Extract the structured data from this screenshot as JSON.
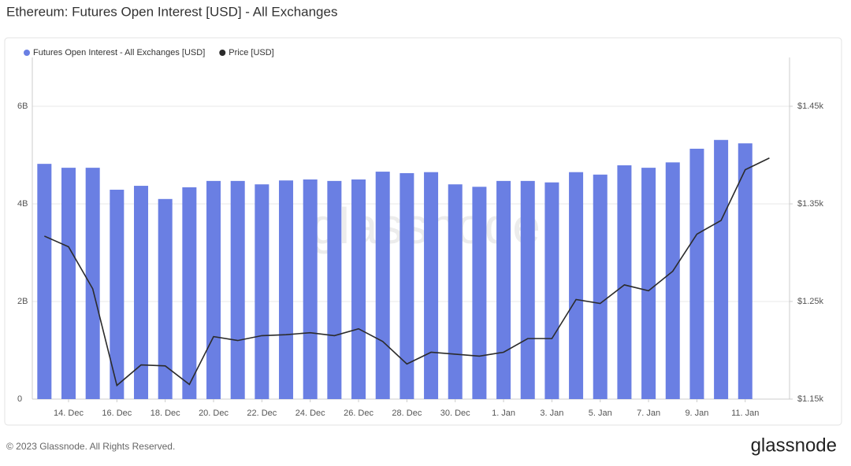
{
  "chart_data": {
    "type": "bar-line",
    "title": "Ethereum: Futures Open Interest [USD] - All Exchanges",
    "watermark": "glassnode",
    "footer": "© 2023 Glassnode. All Rights Reserved.",
    "logo": "glassnode",
    "categories": [
      null,
      "14. Dec",
      null,
      "16. Dec",
      null,
      "18. Dec",
      null,
      "20. Dec",
      null,
      "22. Dec",
      null,
      "24. Dec",
      null,
      "26. Dec",
      null,
      "28. Dec",
      null,
      "30. Dec",
      null,
      "1. Jan",
      null,
      "3. Jan",
      null,
      "5. Jan",
      null,
      "7. Jan",
      null,
      "9. Jan",
      null,
      "11. Jan",
      null
    ],
    "series": [
      {
        "name": "Futures Open Interest - All Exchanges [USD]",
        "color": "#6a7fe3",
        "kind": "bar",
        "values": [
          4820000000,
          4740000000,
          4740000000,
          4290000000,
          4370000000,
          4100000000,
          4340000000,
          4470000000,
          4470000000,
          4400000000,
          4480000000,
          4500000000,
          4470000000,
          4500000000,
          4660000000,
          4630000000,
          4650000000,
          4400000000,
          4350000000,
          4470000000,
          4470000000,
          4440000000,
          4650000000,
          4600000000,
          4790000000,
          4740000000,
          4850000000,
          5130000000,
          5310000000,
          5240000000,
          null
        ]
      },
      {
        "name": "Price [USD]",
        "color": "#2b2b2b",
        "kind": "line",
        "axis": "y2",
        "values": [
          1317,
          1306,
          1263,
          1164,
          1185,
          1184,
          1165,
          1214,
          1210,
          1215,
          1216,
          1218,
          1215,
          1222,
          1209,
          1186,
          1198,
          1196,
          1194,
          1198,
          1212,
          1212,
          1252,
          1248,
          1267,
          1261,
          1281,
          1319,
          1333,
          1385,
          1397
        ]
      }
    ],
    "ylim": [
      0,
      7000000000
    ],
    "yticks": [
      0,
      {
        "value": 2000000000,
        "label": "2B"
      },
      {
        "value": 4000000000,
        "label": "4B"
      },
      {
        "value": 6000000000,
        "label": "6B"
      }
    ],
    "y2lim": [
      1150,
      1500
    ],
    "y2ticks": [
      {
        "value": 1150,
        "label": "$1.15k"
      },
      {
        "value": 1250,
        "label": "$1.25k"
      },
      {
        "value": 1350,
        "label": "$1.35k"
      },
      {
        "value": 1450,
        "label": "$1.45k"
      }
    ],
    "grid": true
  }
}
